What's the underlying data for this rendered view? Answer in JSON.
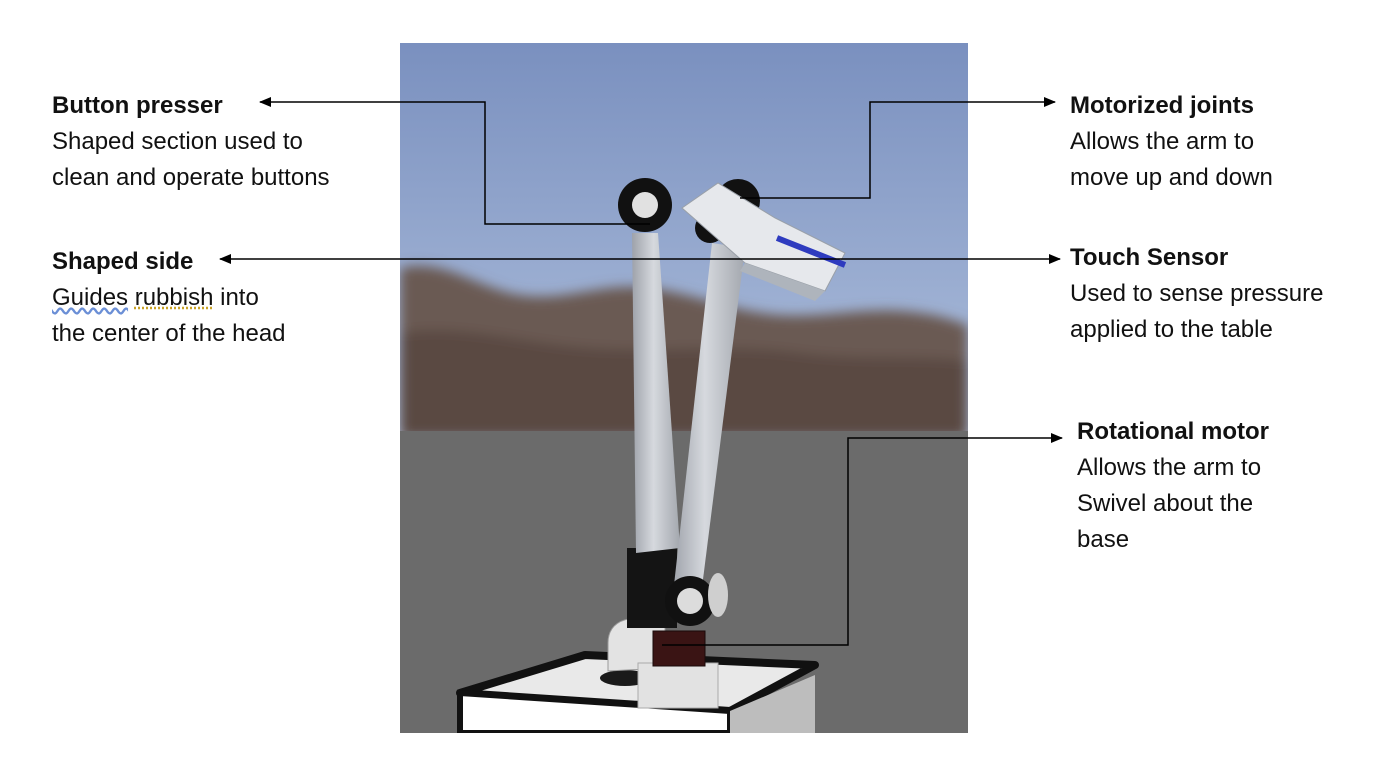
{
  "callouts": {
    "button_presser": {
      "title": "Button presser",
      "lines": [
        "Shaped section used to",
        "clean and operate buttons"
      ]
    },
    "shaped_side": {
      "title": "Shaped side",
      "word1": "Guides",
      "word2": "rubbish",
      "rest1": " into",
      "line2": "the center of the head"
    },
    "motorized_joints": {
      "title": "Motorized joints",
      "lines": [
        "Allows the arm to",
        "move up and down"
      ]
    },
    "touch_sensor": {
      "title": "Touch Sensor",
      "lines": [
        "Used to sense pressure",
        "applied to the table"
      ]
    },
    "rotational_motor": {
      "title": "Rotational motor",
      "lines": [
        "Allows the arm to",
        "Swivel about the",
        "base"
      ]
    }
  },
  "colors": {
    "sky_top": "#7f96c2",
    "sky_bottom": "#a9bcd9",
    "ground": "#6a6a6a",
    "arm": "#c9ccd2",
    "sensor": "#2e3bbf"
  }
}
